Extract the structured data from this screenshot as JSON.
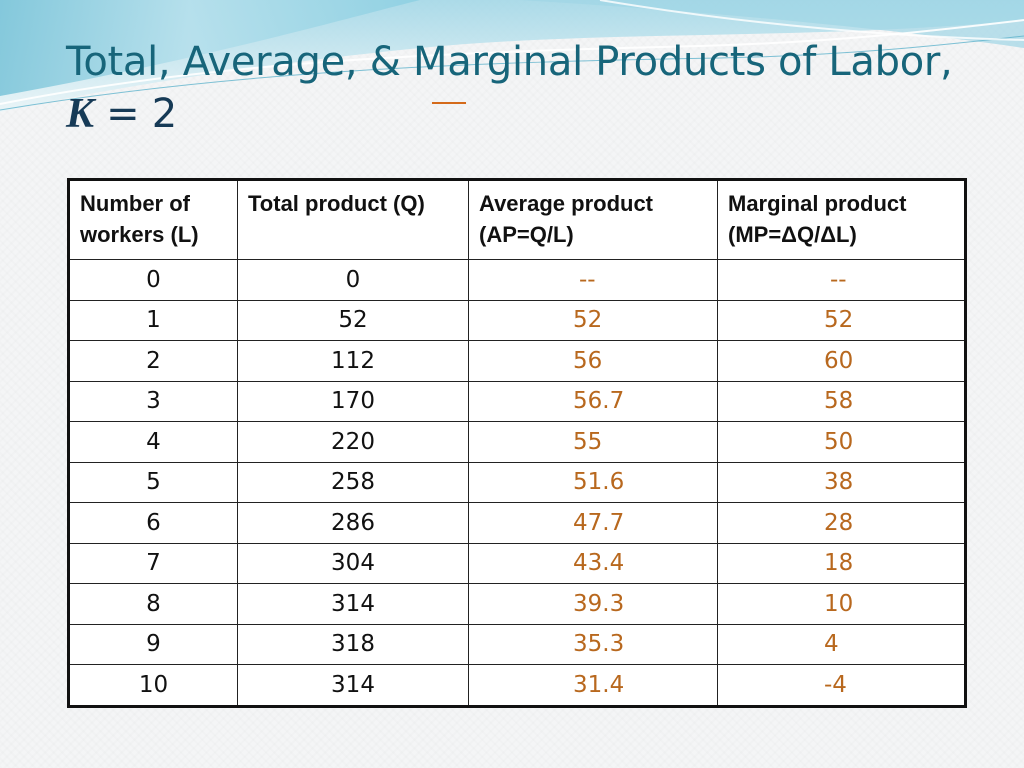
{
  "title": {
    "line1": "Total, Average, & Marginal Products of Labor,",
    "k_var": "K",
    "k_rest": " = 2"
  },
  "table": {
    "headers": [
      "Number of workers (L)",
      "Total product (Q)",
      "Average product (AP=Q/L)",
      "Marginal product (MP=ΔQ/ΔL)"
    ],
    "rows": [
      {
        "L": "0",
        "Q": "0",
        "AP": "--",
        "MP": "--"
      },
      {
        "L": "1",
        "Q": "52",
        "AP": "52",
        "MP": "52"
      },
      {
        "L": "2",
        "Q": "112",
        "AP": "56",
        "MP": "60"
      },
      {
        "L": "3",
        "Q": "170",
        "AP": "56.7",
        "MP": "58"
      },
      {
        "L": "4",
        "Q": "220",
        "AP": "55",
        "MP": "50"
      },
      {
        "L": "5",
        "Q": "258",
        "AP": "51.6",
        "MP": "38"
      },
      {
        "L": "6",
        "Q": "286",
        "AP": "47.7",
        "MP": "28"
      },
      {
        "L": "7",
        "Q": "304",
        "AP": "43.4",
        "MP": "18"
      },
      {
        "L": "8",
        "Q": "314",
        "AP": "39.3",
        "MP": "10"
      },
      {
        "L": "9",
        "Q": "318",
        "AP": "35.3",
        "MP": "4"
      },
      {
        "L": "10",
        "Q": "314",
        "AP": "31.4",
        "MP": "-4"
      }
    ]
  },
  "colors": {
    "title": "#17657a",
    "answer_values": "#b8681e",
    "table_border": "#111111"
  }
}
